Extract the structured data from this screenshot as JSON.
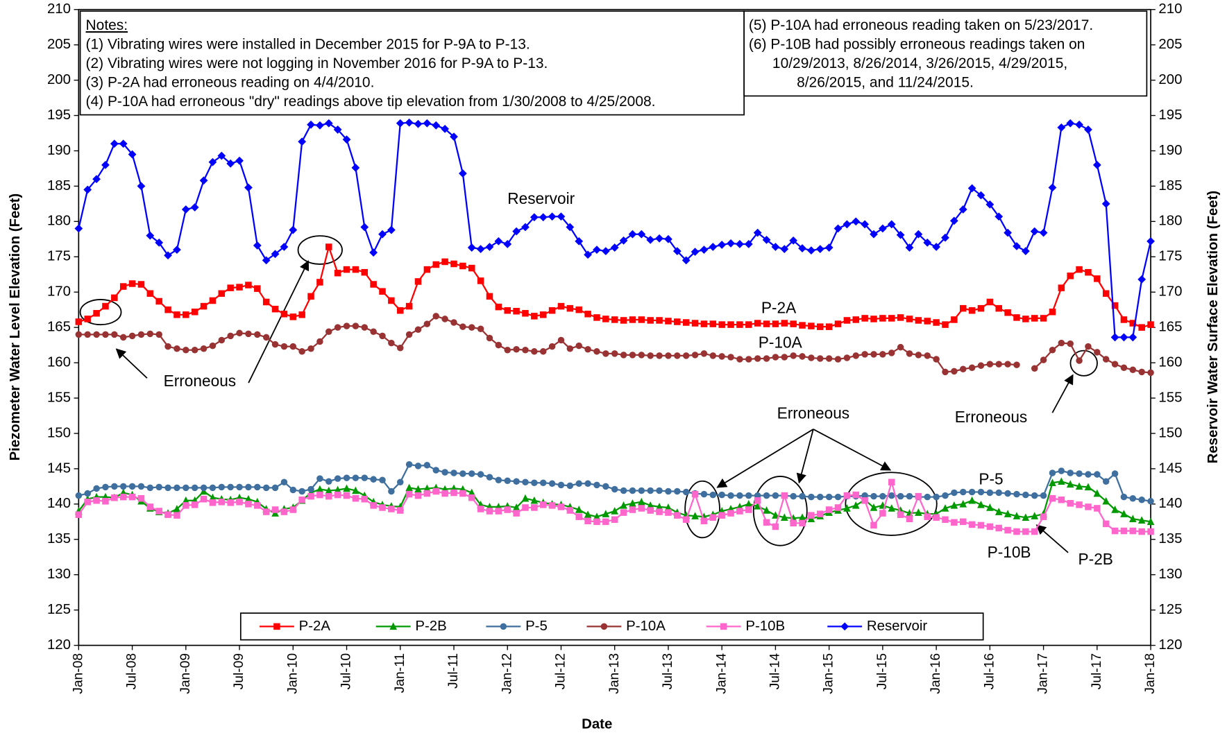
{
  "chart_data": {
    "type": "line",
    "xlabel": "Date",
    "ylabel": "Piezometer Water Level Elevation (Feet)",
    "y2label": "Reservoir Water Surface Elevation (Feet)",
    "xlim": [
      "2008-01",
      "2018-01"
    ],
    "xticks": [
      {
        "value": "2008-01",
        "label": "Jan-08"
      },
      {
        "value": "2008-07",
        "label": "Jul-08"
      },
      {
        "value": "2009-01",
        "label": "Jan-09"
      },
      {
        "value": "2009-07",
        "label": "Jul-09"
      },
      {
        "value": "2010-01",
        "label": "Jan-10"
      },
      {
        "value": "2010-07",
        "label": "Jul-10"
      },
      {
        "value": "2011-01",
        "label": "Jan-11"
      },
      {
        "value": "2011-07",
        "label": "Jul-11"
      },
      {
        "value": "2012-01",
        "label": "Jan-12"
      },
      {
        "value": "2012-07",
        "label": "Jul-12"
      },
      {
        "value": "2013-01",
        "label": "Jan-13"
      },
      {
        "value": "2013-07",
        "label": "Jul-13"
      },
      {
        "value": "2014-01",
        "label": "Jan-14"
      },
      {
        "value": "2014-07",
        "label": "Jul-14"
      },
      {
        "value": "2015-01",
        "label": "Jan-15"
      },
      {
        "value": "2015-07",
        "label": "Jul-15"
      },
      {
        "value": "2016-01",
        "label": "Jan-16"
      },
      {
        "value": "2016-07",
        "label": "Jul-16"
      },
      {
        "value": "2017-01",
        "label": "Jan-17"
      },
      {
        "value": "2017-07",
        "label": "Jul-17"
      },
      {
        "value": "2018-01",
        "label": "Jan-18"
      }
    ],
    "ylim": [
      120,
      210
    ],
    "yticks": [
      120,
      125,
      130,
      135,
      140,
      145,
      150,
      155,
      160,
      165,
      170,
      175,
      180,
      185,
      190,
      195,
      200,
      205,
      210
    ],
    "y2lim": [
      120,
      210
    ],
    "y2ticks": [
      120,
      125,
      130,
      135,
      140,
      145,
      150,
      155,
      160,
      165,
      170,
      175,
      180,
      185,
      190,
      195,
      200,
      205,
      210
    ],
    "grid": false,
    "legend": "bottom",
    "x": [
      "2008-01",
      "2008-02",
      "2008-03",
      "2008-04",
      "2008-05",
      "2008-06",
      "2008-07",
      "2008-08",
      "2008-09",
      "2008-10",
      "2008-11",
      "2008-12",
      "2009-01",
      "2009-02",
      "2009-03",
      "2009-04",
      "2009-05",
      "2009-06",
      "2009-07",
      "2009-08",
      "2009-09",
      "2009-10",
      "2009-11",
      "2009-12",
      "2010-01",
      "2010-02",
      "2010-03",
      "2010-04",
      "2010-05",
      "2010-06",
      "2010-07",
      "2010-08",
      "2010-09",
      "2010-10",
      "2010-11",
      "2010-12",
      "2011-01",
      "2011-02",
      "2011-03",
      "2011-04",
      "2011-05",
      "2011-06",
      "2011-07",
      "2011-08",
      "2011-09",
      "2011-10",
      "2011-11",
      "2011-12",
      "2012-01",
      "2012-02",
      "2012-03",
      "2012-04",
      "2012-05",
      "2012-06",
      "2012-07",
      "2012-08",
      "2012-09",
      "2012-10",
      "2012-11",
      "2012-12",
      "2013-01",
      "2013-02",
      "2013-03",
      "2013-04",
      "2013-05",
      "2013-06",
      "2013-07",
      "2013-08",
      "2013-09",
      "2013-10",
      "2013-11",
      "2013-12",
      "2014-01",
      "2014-02",
      "2014-03",
      "2014-04",
      "2014-05",
      "2014-06",
      "2014-07",
      "2014-08",
      "2014-09",
      "2014-10",
      "2014-11",
      "2014-12",
      "2015-01",
      "2015-02",
      "2015-03",
      "2015-04",
      "2015-05",
      "2015-06",
      "2015-07",
      "2015-08",
      "2015-09",
      "2015-10",
      "2015-11",
      "2015-12",
      "2016-01",
      "2016-02",
      "2016-03",
      "2016-04",
      "2016-05",
      "2016-06",
      "2016-07",
      "2016-08",
      "2016-09",
      "2016-10",
      "2016-11",
      "2016-12",
      "2017-01",
      "2017-02",
      "2017-03",
      "2017-04",
      "2017-05",
      "2017-06",
      "2017-07",
      "2017-08",
      "2017-09",
      "2017-10",
      "2017-11",
      "2017-12",
      "2018-01"
    ],
    "series": [
      {
        "name": "P-2A",
        "color": "#ff0000",
        "marker": "square",
        "values": [
          165.8,
          166.2,
          167,
          168,
          169.2,
          170.8,
          171.2,
          171.1,
          169.8,
          168.7,
          167.5,
          166.8,
          166.8,
          167.2,
          168,
          168.8,
          169.8,
          170.6,
          170.7,
          171,
          170.5,
          168.6,
          167.6,
          166.9,
          166.5,
          166.8,
          169.4,
          171.4,
          176.4,
          172.7,
          173.2,
          173.2,
          172.8,
          171.1,
          170.1,
          168.8,
          167.4,
          168,
          171.5,
          173.2,
          173.9,
          174.3,
          174,
          173.7,
          173.4,
          171.6,
          169.4,
          167.9,
          167.4,
          167.3,
          167,
          166.6,
          166.8,
          167.4,
          168,
          167.7,
          167.5,
          166.9,
          166.4,
          166.2,
          166.1,
          166,
          166.1,
          166.1,
          166,
          166,
          165.9,
          165.8,
          165.7,
          165.6,
          165.5,
          165.5,
          165.4,
          165.4,
          165.4,
          165.4,
          165.6,
          165.5,
          165.5,
          165.6,
          165.5,
          165.3,
          165.2,
          165.1,
          165.1,
          165.5,
          166,
          166.1,
          166.3,
          166.2,
          166.3,
          166.3,
          166.4,
          166.2,
          166,
          165.9,
          165.7,
          165.4,
          166.1,
          167.7,
          167.4,
          167.7,
          168.6,
          167.7,
          167.1,
          166.4,
          166.2,
          166.3,
          166.3,
          167.2,
          170.6,
          172.3,
          173.2,
          172.8,
          171.9,
          169.8,
          168.1,
          166.1,
          165.6,
          165,
          165.4
        ]
      },
      {
        "name": "P-2B",
        "color": "#009900",
        "marker": "triangle",
        "values": [
          139,
          140.7,
          141,
          141,
          140.9,
          141.6,
          141.3,
          140.4,
          139.4,
          138.9,
          138.7,
          139.3,
          140.5,
          140.5,
          141.8,
          140.9,
          140.7,
          140.6,
          140.9,
          140.7,
          140.3,
          139.3,
          138.7,
          139.3,
          139.5,
          140.5,
          141.6,
          142.1,
          141.9,
          142,
          142.2,
          141.9,
          141.2,
          140.3,
          139.9,
          139.7,
          139.6,
          142.3,
          142.1,
          142.2,
          142.3,
          142.1,
          142.2,
          142.1,
          141.6,
          139.9,
          139.6,
          139.6,
          139.7,
          139.5,
          140.8,
          140.5,
          140.2,
          140,
          139.9,
          139.6,
          139.2,
          138.5,
          138.2,
          138.6,
          139,
          139.8,
          140.1,
          140.3,
          139.8,
          139.6,
          139.5,
          138.8,
          138.4,
          138.3,
          138.2,
          138.5,
          139,
          139.3,
          139.6,
          140,
          139.7,
          139.1,
          138.4,
          138.1,
          138,
          138.1,
          137.9,
          138.3,
          138.8,
          139.1,
          139.4,
          139.8,
          140.6,
          139.5,
          139.8,
          139.4,
          139.1,
          138.7,
          138.8,
          138.6,
          138.6,
          139.4,
          139.8,
          140,
          140.5,
          139.9,
          139.5,
          138.9,
          138.6,
          138.3,
          138.1,
          138.3,
          138.6,
          143,
          143.2,
          142.8,
          142.5,
          142.4,
          141.5,
          140.4,
          139.2,
          138.6,
          137.9,
          137.7,
          137.5
        ]
      },
      {
        "name": "P-5",
        "color": "#3e6f9e",
        "marker": "circle",
        "values": [
          141.2,
          141.5,
          142.2,
          142.4,
          142.5,
          142.5,
          142.5,
          142.5,
          142.3,
          142.4,
          142.3,
          142.3,
          142.3,
          142.3,
          142.3,
          142.3,
          142.4,
          142.4,
          142.4,
          142.4,
          142.4,
          142.3,
          142.3,
          143.1,
          142,
          141.8,
          142.1,
          143.6,
          143.2,
          143.6,
          143.7,
          143.7,
          143.7,
          143.5,
          143.4,
          141.8,
          143.1,
          145.6,
          145.4,
          145.5,
          144.8,
          144.5,
          144.4,
          144.3,
          144.3,
          144.2,
          143.8,
          143.4,
          143.3,
          143.2,
          143.1,
          143,
          143,
          142.9,
          142.7,
          142.6,
          142.9,
          142.9,
          142.7,
          142.5,
          142.1,
          141.9,
          141.9,
          141.9,
          141.9,
          141.9,
          141.8,
          141.8,
          141.7,
          141.5,
          141.4,
          141.3,
          141.3,
          141.2,
          141.2,
          141.2,
          141.2,
          141.2,
          141.2,
          141.2,
          141.1,
          141.1,
          141,
          141,
          141,
          141,
          141.1,
          141.1,
          141.2,
          141.1,
          141.1,
          141.2,
          141.1,
          141.1,
          141,
          141,
          141,
          141.2,
          141.6,
          141.7,
          141.7,
          141.7,
          141.6,
          141.6,
          141.5,
          141.4,
          141.3,
          141.2,
          141.2,
          144.4,
          144.7,
          144.4,
          144.3,
          144.2,
          144.2,
          143.2,
          144.3,
          141,
          140.8,
          140.6,
          140.4
        ]
      },
      {
        "name": "P-10A",
        "color": "#993333",
        "marker": "circle",
        "values": [
          164,
          164,
          164,
          164,
          164,
          163.6,
          163.8,
          164,
          164.1,
          164,
          162.3,
          162,
          161.8,
          161.8,
          162,
          162.4,
          163.2,
          163.8,
          164.2,
          164.1,
          164,
          163.6,
          162.6,
          162.3,
          162.3,
          161.6,
          162,
          163,
          164.4,
          165,
          165.2,
          165.2,
          165,
          164.4,
          163.8,
          162.8,
          162.1,
          164,
          164.7,
          165.5,
          166.6,
          166.2,
          165.7,
          165.1,
          165,
          164.8,
          163.5,
          162.5,
          161.8,
          161.9,
          161.8,
          161.6,
          161.6,
          162.3,
          163.2,
          162,
          162.4,
          161.9,
          161.6,
          161.3,
          161.3,
          161.1,
          161.1,
          161.1,
          161,
          161,
          161,
          161,
          161,
          161.1,
          161.3,
          161,
          160.9,
          160.8,
          160.5,
          160.5,
          160.6,
          160.6,
          160.8,
          160.8,
          161,
          160.9,
          160.7,
          160.6,
          160.6,
          160.5,
          160.7,
          161,
          161.2,
          161.2,
          161.2,
          161.4,
          162.2,
          161.3,
          161.1,
          161,
          160.5,
          158.7,
          158.8,
          159.1,
          159.3,
          159.6,
          159.8,
          159.8,
          159.8,
          159.7,
          null,
          159.2,
          160.4,
          161.8,
          162.8,
          162.7,
          160.3,
          162.3,
          161.5,
          160.5,
          159.8,
          159.3,
          159,
          158.7,
          158.6
        ]
      },
      {
        "name": "P-10B",
        "color": "#ff66cc",
        "marker": "square",
        "values": [
          138.5,
          140.3,
          140.5,
          140.4,
          140.9,
          141,
          141,
          140.8,
          139.6,
          139,
          138.5,
          138.4,
          139.8,
          139.9,
          140.7,
          140.2,
          140.3,
          140.2,
          140.3,
          140,
          139.8,
          138.9,
          139.2,
          138.9,
          139.2,
          140.6,
          141.1,
          141.3,
          141.1,
          141.3,
          141.2,
          140.8,
          140.7,
          139.8,
          139.5,
          139.3,
          139.1,
          141.4,
          141.2,
          141.5,
          141.8,
          141.5,
          141.6,
          141.5,
          140.9,
          139.3,
          139,
          139,
          139.2,
          138.7,
          139.5,
          139.5,
          139.9,
          139.8,
          139.6,
          139.1,
          138.2,
          137.6,
          137.5,
          137.5,
          137.8,
          138.8,
          139.2,
          139.4,
          139.1,
          138.9,
          138.8,
          138.4,
          137.8,
          141.4,
          137.6,
          138.1,
          138.4,
          138.7,
          139,
          139.2,
          140.5,
          137.4,
          136.8,
          141.2,
          137.3,
          137.3,
          138.4,
          138.6,
          139.2,
          139.5,
          141.2,
          141.3,
          140.5,
          137,
          138.7,
          143.1,
          138.5,
          137.9,
          141.1,
          138.2,
          138.1,
          137.8,
          137.4,
          137.5,
          137.1,
          137,
          136.8,
          136.6,
          136.3,
          136.1,
          136.1,
          136.1,
          138.2,
          140.8,
          140.6,
          140.1,
          139.9,
          139.6,
          139.4,
          137.2,
          136.2,
          136.2,
          136.2,
          136.1,
          136.1
        ]
      },
      {
        "name": "Reservoir",
        "color": "#0000ff",
        "marker": "diamond",
        "axis": "y2",
        "values": [
          179,
          184.5,
          186,
          188,
          191,
          191,
          189.5,
          185,
          178,
          177,
          175.2,
          176,
          181.7,
          182,
          185.8,
          188.4,
          189.3,
          188.2,
          188.6,
          184.8,
          176.6,
          174.5,
          175.4,
          176.4,
          178.8,
          191.3,
          193.7,
          193.6,
          193.9,
          193,
          191.6,
          187.6,
          179.2,
          175.6,
          178.2,
          178.8,
          193.9,
          194,
          193.8,
          193.9,
          193.6,
          193.1,
          192,
          186.8,
          176.3,
          176.1,
          176.4,
          177.2,
          176.8,
          178.6,
          179.2,
          180.6,
          180.6,
          180.7,
          180.7,
          179.2,
          177.2,
          175.3,
          176,
          175.8,
          176.3,
          177.3,
          178.2,
          178.2,
          177.4,
          177.6,
          177.5,
          175.8,
          174.5,
          175.7,
          176,
          176.4,
          176.7,
          176.9,
          176.8,
          176.8,
          178.4,
          177.4,
          176.4,
          176.1,
          177.3,
          176.2,
          175.9,
          176.1,
          176.3,
          179,
          179.6,
          180,
          179.6,
          178.2,
          179,
          179.6,
          178.1,
          176.3,
          178.2,
          177,
          176.4,
          177.7,
          180.1,
          181.7,
          184.7,
          183.7,
          182.4,
          180.7,
          178.4,
          176.5,
          175.8,
          178.6,
          178.4,
          184.8,
          193.3,
          193.9,
          193.7,
          193,
          188,
          182.5,
          163.6,
          163.6,
          163.6,
          171.8,
          177.2
        ]
      }
    ],
    "notes_left": [
      "Notes:",
      "(1) Vibrating wires were installed in December 2015 for P-9A to P-13.",
      "(2) Vibrating wires were not logging in November 2016 for P-9A to P-13.",
      "(3) P-2A had erroneous reading on 4/4/2010.",
      "(4) P-10A had erroneous \"dry\" readings above tip elevation from 1/30/2008 to 4/25/2008."
    ],
    "notes_right": [
      "(5) P-10A had erroneous reading taken on 5/23/2017.",
      "(6) P-10B had possibly erroneous readings taken on",
      "10/29/2013, 8/26/2014, 3/26/2015, 4/29/2015,",
      "8/26/2015, and 11/24/2015."
    ],
    "annotations": [
      "Reservoir",
      "P-2A",
      "P-10A",
      "P-5",
      "P-10B",
      "P-2B",
      "Erroneous",
      "Erroneous",
      "Erroneous"
    ]
  }
}
